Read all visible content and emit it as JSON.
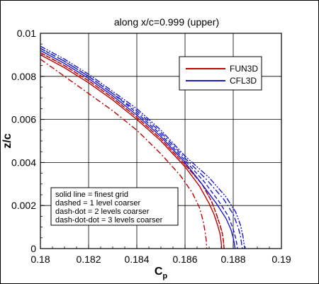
{
  "chart_data": {
    "type": "line",
    "title": "along x/c=0.999 (upper)",
    "xlabel": "C",
    "xlabel_sub": "p",
    "ylabel": "z/c",
    "xlim": [
      0.18,
      0.19
    ],
    "ylim": [
      0,
      0.01
    ],
    "x_ticks": [
      "0.18",
      "0.182",
      "0.184",
      "0.186",
      "0.188",
      "0.19"
    ],
    "y_ticks": [
      "0",
      "0.002",
      "0.004",
      "0.006",
      "0.008",
      "0.01"
    ],
    "grid": true,
    "legend": {
      "placement": "top-right",
      "entries": [
        {
          "name": "FUN3D",
          "color": "#c00000"
        },
        {
          "name": "CFL3D",
          "color": "#1a1ad0"
        }
      ]
    },
    "note": [
      "solid line = finest grid",
      "dashed = 1 level coarser",
      "dash-dot = 2 levels coarser",
      "dash-dot-dot = 3 levels coarser"
    ],
    "series": [
      {
        "code": "FUN3D",
        "grid_level": "finest",
        "color": "#c00000",
        "dash": "solid",
        "x": [
          0.18,
          0.181,
          0.182,
          0.183,
          0.184,
          0.185,
          0.186,
          0.1866,
          0.187,
          0.1872,
          0.18735,
          0.18745,
          0.1875,
          0.18752
        ],
        "y": [
          0.009,
          0.0084,
          0.0077,
          0.0069,
          0.006,
          0.005,
          0.0038,
          0.0029,
          0.0021,
          0.0016,
          0.0011,
          0.0007,
          0.0003,
          0.0
        ]
      },
      {
        "code": "FUN3D",
        "grid_level": "1 level coarser",
        "color": "#c00000",
        "dash": "dashed",
        "x": [
          0.18,
          0.181,
          0.182,
          0.183,
          0.184,
          0.185,
          0.186,
          0.1867,
          0.1871,
          0.1873,
          0.18745,
          0.18755,
          0.1876,
          0.18762
        ],
        "y": [
          0.0091,
          0.0085,
          0.0078,
          0.007,
          0.0061,
          0.0051,
          0.0039,
          0.003,
          0.0022,
          0.0016,
          0.0011,
          0.0007,
          0.0003,
          0.0
        ]
      },
      {
        "code": "FUN3D",
        "grid_level": "2 levels coarser",
        "color": "#c00000",
        "dash": "dashdot",
        "x": [
          0.18,
          0.181,
          0.182,
          0.183,
          0.184,
          0.185,
          0.1858,
          0.1863,
          0.1866,
          0.18675,
          0.18683,
          0.18688,
          0.1869
        ],
        "y": [
          0.0088,
          0.008,
          0.0072,
          0.0064,
          0.0055,
          0.0044,
          0.0034,
          0.0026,
          0.0019,
          0.0013,
          0.0008,
          0.0004,
          0.0
        ]
      },
      {
        "code": "FUN3D",
        "grid_level": "3 levels coarser",
        "color": "#c00000",
        "dash": "dashdotdot",
        "x": [
          0.18,
          0.181,
          0.182,
          0.183,
          0.184,
          0.185,
          0.186,
          0.1867,
          0.1871,
          0.1873,
          0.18745,
          0.18755,
          0.1876,
          0.18762
        ],
        "y": [
          0.0091,
          0.0085,
          0.0078,
          0.007,
          0.0061,
          0.0051,
          0.0039,
          0.003,
          0.0022,
          0.0016,
          0.0011,
          0.0007,
          0.0003,
          0.0
        ]
      },
      {
        "code": "CFL3D",
        "grid_level": "finest",
        "color": "#1a1ad0",
        "dash": "solid",
        "x": [
          0.18,
          0.181,
          0.182,
          0.183,
          0.184,
          0.185,
          0.186,
          0.1867,
          0.1873,
          0.1877,
          0.1879,
          0.188,
          0.18805,
          0.18808
        ],
        "y": [
          0.0092,
          0.0086,
          0.0079,
          0.0071,
          0.0062,
          0.0052,
          0.004,
          0.003,
          0.0021,
          0.0014,
          0.0009,
          0.0005,
          0.0002,
          0.0
        ]
      },
      {
        "code": "CFL3D",
        "grid_level": "1 level coarser",
        "color": "#1a1ad0",
        "dash": "dashed",
        "x": [
          0.18,
          0.181,
          0.182,
          0.183,
          0.184,
          0.185,
          0.186,
          0.1868,
          0.1874,
          0.1878,
          0.188,
          0.1881,
          0.18815,
          0.18818
        ],
        "y": [
          0.0093,
          0.0087,
          0.008,
          0.0072,
          0.0063,
          0.0053,
          0.0041,
          0.0031,
          0.0022,
          0.0015,
          0.0009,
          0.0005,
          0.0002,
          0.0
        ]
      },
      {
        "code": "CFL3D",
        "grid_level": "2 levels coarser",
        "color": "#1a1ad0",
        "dash": "dashdot",
        "x": [
          0.18,
          0.181,
          0.182,
          0.183,
          0.184,
          0.185,
          0.186,
          0.1869,
          0.1876,
          0.188,
          0.1882,
          0.1883,
          0.18835,
          0.18838
        ],
        "y": [
          0.0093,
          0.0087,
          0.008,
          0.0072,
          0.0064,
          0.0054,
          0.0042,
          0.0032,
          0.0023,
          0.0016,
          0.001,
          0.0006,
          0.0002,
          0.0
        ]
      },
      {
        "code": "CFL3D",
        "grid_level": "3 levels coarser",
        "color": "#1a1ad0",
        "dash": "dashdotdot",
        "x": [
          0.18,
          0.181,
          0.182,
          0.183,
          0.184,
          0.185,
          0.186,
          0.187,
          0.1877,
          0.1881,
          0.1883,
          0.1884,
          0.18845,
          0.18848
        ],
        "y": [
          0.0094,
          0.0088,
          0.0081,
          0.0073,
          0.0065,
          0.0055,
          0.0043,
          0.0033,
          0.0024,
          0.0017,
          0.0011,
          0.0006,
          0.0002,
          0.0
        ]
      }
    ]
  }
}
